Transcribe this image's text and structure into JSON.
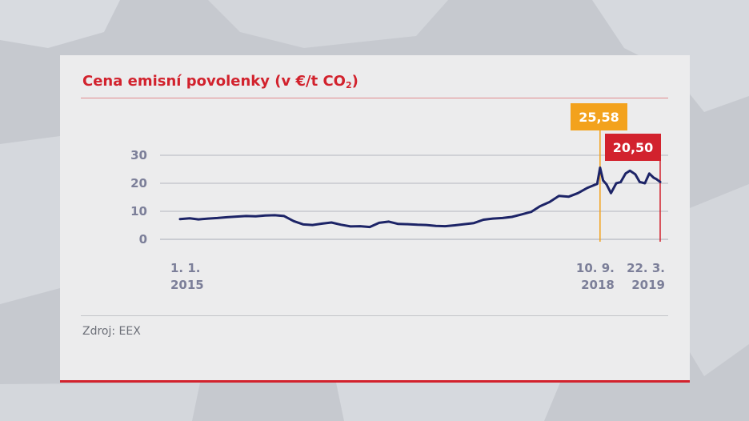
{
  "colors": {
    "accent": "#d2222d",
    "line": "#1d2467",
    "highlight_1": "#f3a21d",
    "highlight_2": "#d2222d",
    "panel": "#ececed",
    "tick_text": "#7c7f99"
  },
  "header": {
    "title_main": "Cena emisní povolenky (v €/t CO",
    "title_sub": "2",
    "title_end": ")"
  },
  "footer": {
    "source": "Zdroj: EEX"
  },
  "chart_data": {
    "type": "line",
    "title": "Cena emisní povolenky (v €/t CO2)",
    "xlabel": "",
    "ylabel": "",
    "ylim": [
      0,
      30
    ],
    "yticks": [
      "0",
      "10",
      "20",
      "30"
    ],
    "grid": true,
    "xlim": [
      "2015-01-01",
      "2019-03-22"
    ],
    "x_tick_labels": [
      {
        "date": "2015-01-01",
        "line1": "1. 1.",
        "line2": "2015"
      },
      {
        "date": "2018-09-10",
        "line1": "10. 9.",
        "line2": "2018"
      },
      {
        "date": "2019-03-22",
        "line1": "22. 3.",
        "line2": "2019"
      }
    ],
    "callouts": [
      {
        "date": "2018-09-10",
        "value": 25.58,
        "label": "25,58",
        "color": "#f3a21d"
      },
      {
        "date": "2019-03-22",
        "value": 20.5,
        "label": "20,50",
        "color": "#d2222d"
      }
    ],
    "series": [
      {
        "color": "#1d2467",
        "x": [
          "2015-01-01",
          "2015-02-01",
          "2015-03-01",
          "2015-04-01",
          "2015-05-01",
          "2015-06-01",
          "2015-07-01",
          "2015-08-01",
          "2015-09-01",
          "2015-10-01",
          "2015-11-01",
          "2015-12-01",
          "2016-01-01",
          "2016-02-01",
          "2016-03-01",
          "2016-04-01",
          "2016-05-01",
          "2016-06-01",
          "2016-07-01",
          "2016-08-01",
          "2016-09-01",
          "2016-10-01",
          "2016-11-01",
          "2016-12-01",
          "2017-01-01",
          "2017-02-01",
          "2017-03-01",
          "2017-04-01",
          "2017-05-01",
          "2017-06-01",
          "2017-07-01",
          "2017-08-01",
          "2017-09-01",
          "2017-10-01",
          "2017-11-01",
          "2017-12-01",
          "2018-01-01",
          "2018-02-01",
          "2018-03-01",
          "2018-04-01",
          "2018-05-01",
          "2018-06-01",
          "2018-07-01",
          "2018-08-01",
          "2018-09-01",
          "2018-09-10",
          "2018-09-20",
          "2018-10-01",
          "2018-10-15",
          "2018-11-01",
          "2018-11-15",
          "2018-12-01",
          "2018-12-15",
          "2019-01-01",
          "2019-01-15",
          "2019-02-01",
          "2019-02-15",
          "2019-03-01",
          "2019-03-10",
          "2019-03-22"
        ],
        "y": [
          7.2,
          7.5,
          7.1,
          7.4,
          7.6,
          7.9,
          8.1,
          8.3,
          8.2,
          8.5,
          8.6,
          8.3,
          6.5,
          5.3,
          5.1,
          5.6,
          6.0,
          5.2,
          4.6,
          4.7,
          4.4,
          5.9,
          6.3,
          5.5,
          5.4,
          5.2,
          5.1,
          4.8,
          4.7,
          5.0,
          5.4,
          5.8,
          7.0,
          7.4,
          7.6,
          8.0,
          8.9,
          9.8,
          11.8,
          13.3,
          15.5,
          15.2,
          16.5,
          18.4,
          19.8,
          25.58,
          21.0,
          19.6,
          16.5,
          20.0,
          20.4,
          23.5,
          24.5,
          23.2,
          20.5,
          20.0,
          23.5,
          22.0,
          21.5,
          20.5
        ]
      }
    ]
  }
}
